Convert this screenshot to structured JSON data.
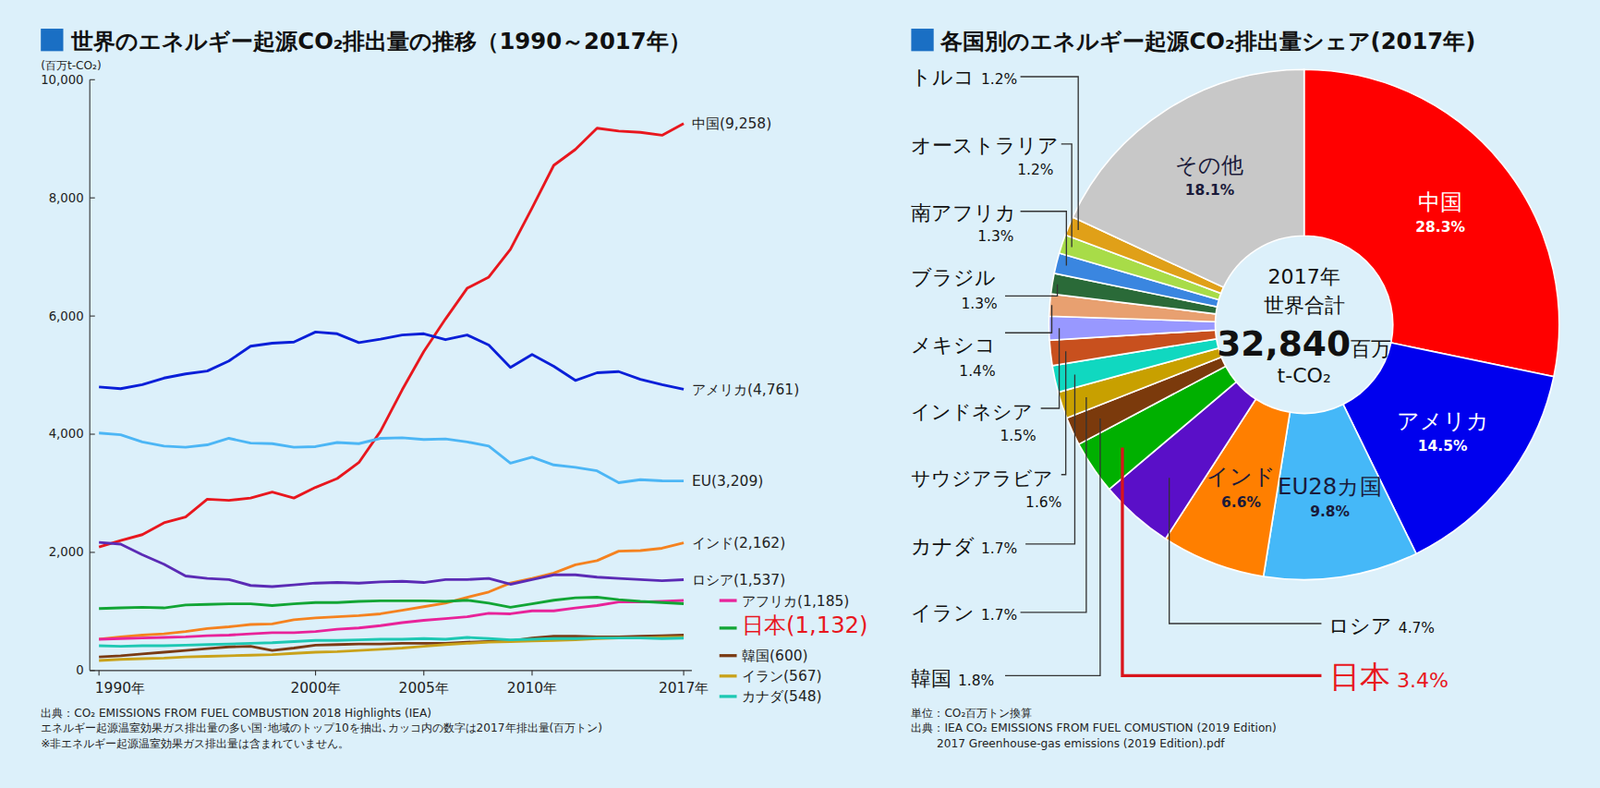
{
  "chart_data": [
    {
      "type": "line",
      "title": "世界のエネルギー起源CO₂排出量の推移（1990～2017年）",
      "y_label": "(百万t-CO₂)",
      "footnotes": [
        "出典：CO₂ EMISSIONS FROM FUEL COMBUSTION 2018 Highlights (IEA)",
        "エネルギー起源温室効果ガス排出量の多い国･地域のトップ10を抽出､カッコ内の数字は2017年排出量(百万トン)",
        "※非エネルギー起源温室効果ガス排出量は含まれていません。"
      ],
      "x": [
        1990,
        1991,
        1992,
        1993,
        1994,
        1995,
        1996,
        1997,
        1998,
        1999,
        2000,
        2001,
        2002,
        2003,
        2004,
        2005,
        2006,
        2007,
        2008,
        2009,
        2010,
        2011,
        2012,
        2013,
        2014,
        2015,
        2016,
        2017
      ],
      "xlim": [
        1990,
        2017
      ],
      "xticks": [
        {
          "value": 1990,
          "label": "1990年"
        },
        {
          "value": 2000,
          "label": "2000年"
        },
        {
          "value": 2005,
          "label": "2005年"
        },
        {
          "value": 2010,
          "label": "2010年"
        },
        {
          "value": 2017,
          "label": "2017年"
        }
      ],
      "ylim": [
        0,
        10000
      ],
      "yticks": [
        0,
        {
          "value": 2000,
          "label": "2,000"
        },
        {
          "value": 4000,
          "label": "4,000"
        },
        {
          "value": 6000,
          "label": "6,000"
        },
        {
          "value": 8000,
          "label": "8,000"
        },
        {
          "value": 10000,
          "label": "10,000"
        }
      ],
      "grid": false,
      "series": [
        {
          "name": "中国(9,258)",
          "color": "#e8171e",
          "values": [
            2089,
            2200,
            2300,
            2500,
            2600,
            2900,
            2880,
            2920,
            3020,
            2920,
            3100,
            3250,
            3520,
            4050,
            4750,
            5400,
            5950,
            6470,
            6660,
            7130,
            7830,
            8550,
            8820,
            9180,
            9130,
            9110,
            9060,
            9258
          ]
        },
        {
          "name": "アメリカ(4,761)",
          "color": "#0a1fd8",
          "values": [
            4800,
            4770,
            4840,
            4950,
            5020,
            5070,
            5240,
            5490,
            5540,
            5560,
            5730,
            5700,
            5550,
            5610,
            5680,
            5700,
            5600,
            5680,
            5510,
            5130,
            5350,
            5150,
            4910,
            5040,
            5060,
            4930,
            4840,
            4761
          ]
        },
        {
          "name": "EU(3,209)",
          "color": "#4cb6f5",
          "values": [
            4020,
            3990,
            3870,
            3800,
            3780,
            3820,
            3930,
            3850,
            3840,
            3780,
            3790,
            3860,
            3840,
            3930,
            3940,
            3910,
            3920,
            3870,
            3800,
            3510,
            3610,
            3480,
            3440,
            3380,
            3180,
            3230,
            3210,
            3209
          ]
        },
        {
          "name": "インド(2,162)",
          "color": "#f5821f",
          "values": [
            530,
            570,
            600,
            620,
            660,
            710,
            740,
            780,
            790,
            860,
            890,
            910,
            930,
            960,
            1020,
            1080,
            1140,
            1240,
            1330,
            1480,
            1560,
            1650,
            1790,
            1860,
            2020,
            2030,
            2070,
            2162
          ]
        },
        {
          "name": "ロシア(1,537)",
          "color": "#5b2bb5",
          "values": [
            2170,
            2140,
            1960,
            1800,
            1600,
            1560,
            1540,
            1440,
            1420,
            1450,
            1480,
            1490,
            1480,
            1500,
            1510,
            1490,
            1540,
            1540,
            1560,
            1460,
            1540,
            1620,
            1620,
            1580,
            1560,
            1540,
            1520,
            1537
          ]
        },
        {
          "name": "アフリカ(1,185)",
          "color": "#e8239a",
          "values": [
            530,
            540,
            550,
            560,
            570,
            590,
            600,
            620,
            640,
            640,
            660,
            700,
            720,
            760,
            810,
            850,
            880,
            910,
            970,
            960,
            1010,
            1010,
            1060,
            1100,
            1160,
            1160,
            1170,
            1185
          ]
        },
        {
          "name": "日本(1,132)",
          "color": "#12a535",
          "values": [
            1050,
            1060,
            1070,
            1060,
            1110,
            1120,
            1130,
            1130,
            1100,
            1130,
            1150,
            1150,
            1170,
            1180,
            1180,
            1180,
            1170,
            1190,
            1140,
            1070,
            1130,
            1190,
            1230,
            1240,
            1200,
            1170,
            1150,
            1132
          ]
        },
        {
          "name": "韓国(600)",
          "color": "#7a3b14",
          "values": [
            230,
            250,
            280,
            310,
            340,
            370,
            400,
            410,
            340,
            380,
            430,
            440,
            450,
            450,
            460,
            460,
            460,
            480,
            490,
            500,
            550,
            580,
            580,
            570,
            570,
            580,
            590,
            600
          ]
        },
        {
          "name": "イラン(567)",
          "color": "#c9a21a",
          "values": [
            170,
            190,
            200,
            210,
            230,
            240,
            250,
            260,
            270,
            290,
            310,
            320,
            340,
            360,
            380,
            410,
            440,
            460,
            480,
            490,
            500,
            510,
            520,
            540,
            550,
            550,
            560,
            567
          ]
        },
        {
          "name": "カナダ(548)",
          "color": "#1ec8b3",
          "values": [
            420,
            410,
            420,
            420,
            430,
            440,
            450,
            460,
            470,
            490,
            510,
            510,
            520,
            530,
            530,
            540,
            530,
            560,
            540,
            520,
            530,
            540,
            540,
            550,
            550,
            550,
            540,
            548
          ]
        }
      ]
    },
    {
      "type": "pie",
      "title": "各国別のエネルギー起源CO₂排出量シェア(2017年)",
      "center_text": [
        "2017年",
        "世界合計",
        "32,840",
        "百万",
        "t-CO₂"
      ],
      "footnotes": [
        "単位：CO₂百万トン換算",
        "出典：IEA CO₂ EMISSIONS FROM FUEL COMUSTION (2019 Edition)",
        "2017 Greenhouse-gas emissions (2019 Edition).pdf"
      ],
      "categories": [
        "中国",
        "アメリカ",
        "EU28カ国",
        "インド",
        "ロシア",
        "日本",
        "韓国",
        "イラン",
        "カナダ",
        "サウジアラビア",
        "インドネシア",
        "メキシコ",
        "ブラジル",
        "南アフリカ",
        "オーストラリア",
        "トルコ",
        "その他"
      ],
      "values": [
        28.3,
        14.5,
        9.8,
        6.6,
        4.7,
        3.4,
        1.8,
        1.7,
        1.7,
        1.6,
        1.5,
        1.4,
        1.3,
        1.3,
        1.2,
        1.2,
        18.1
      ],
      "value_labels": [
        "28.3%",
        "14.5%",
        "9.8%",
        "6.6%",
        "4.7%",
        "3.4%",
        "1.8%",
        "1.7%",
        "1.7%",
        "1.6%",
        "1.5%",
        "1.4%",
        "1.3%",
        "1.3%",
        "1.2%",
        "1.2%",
        "18.1%"
      ],
      "colors": [
        "#ff0000",
        "#0000ee",
        "#45b8f8",
        "#ff7f00",
        "#5a0fc8",
        "#00b000",
        "#7b3a0c",
        "#c8a000",
        "#10d8c0",
        "#c8501e",
        "#9898ff",
        "#e8a070",
        "#2a6a38",
        "#3a86e0",
        "#a8dc48",
        "#e0a018",
        "#c8c8c8"
      ],
      "data_labels": true
    }
  ]
}
